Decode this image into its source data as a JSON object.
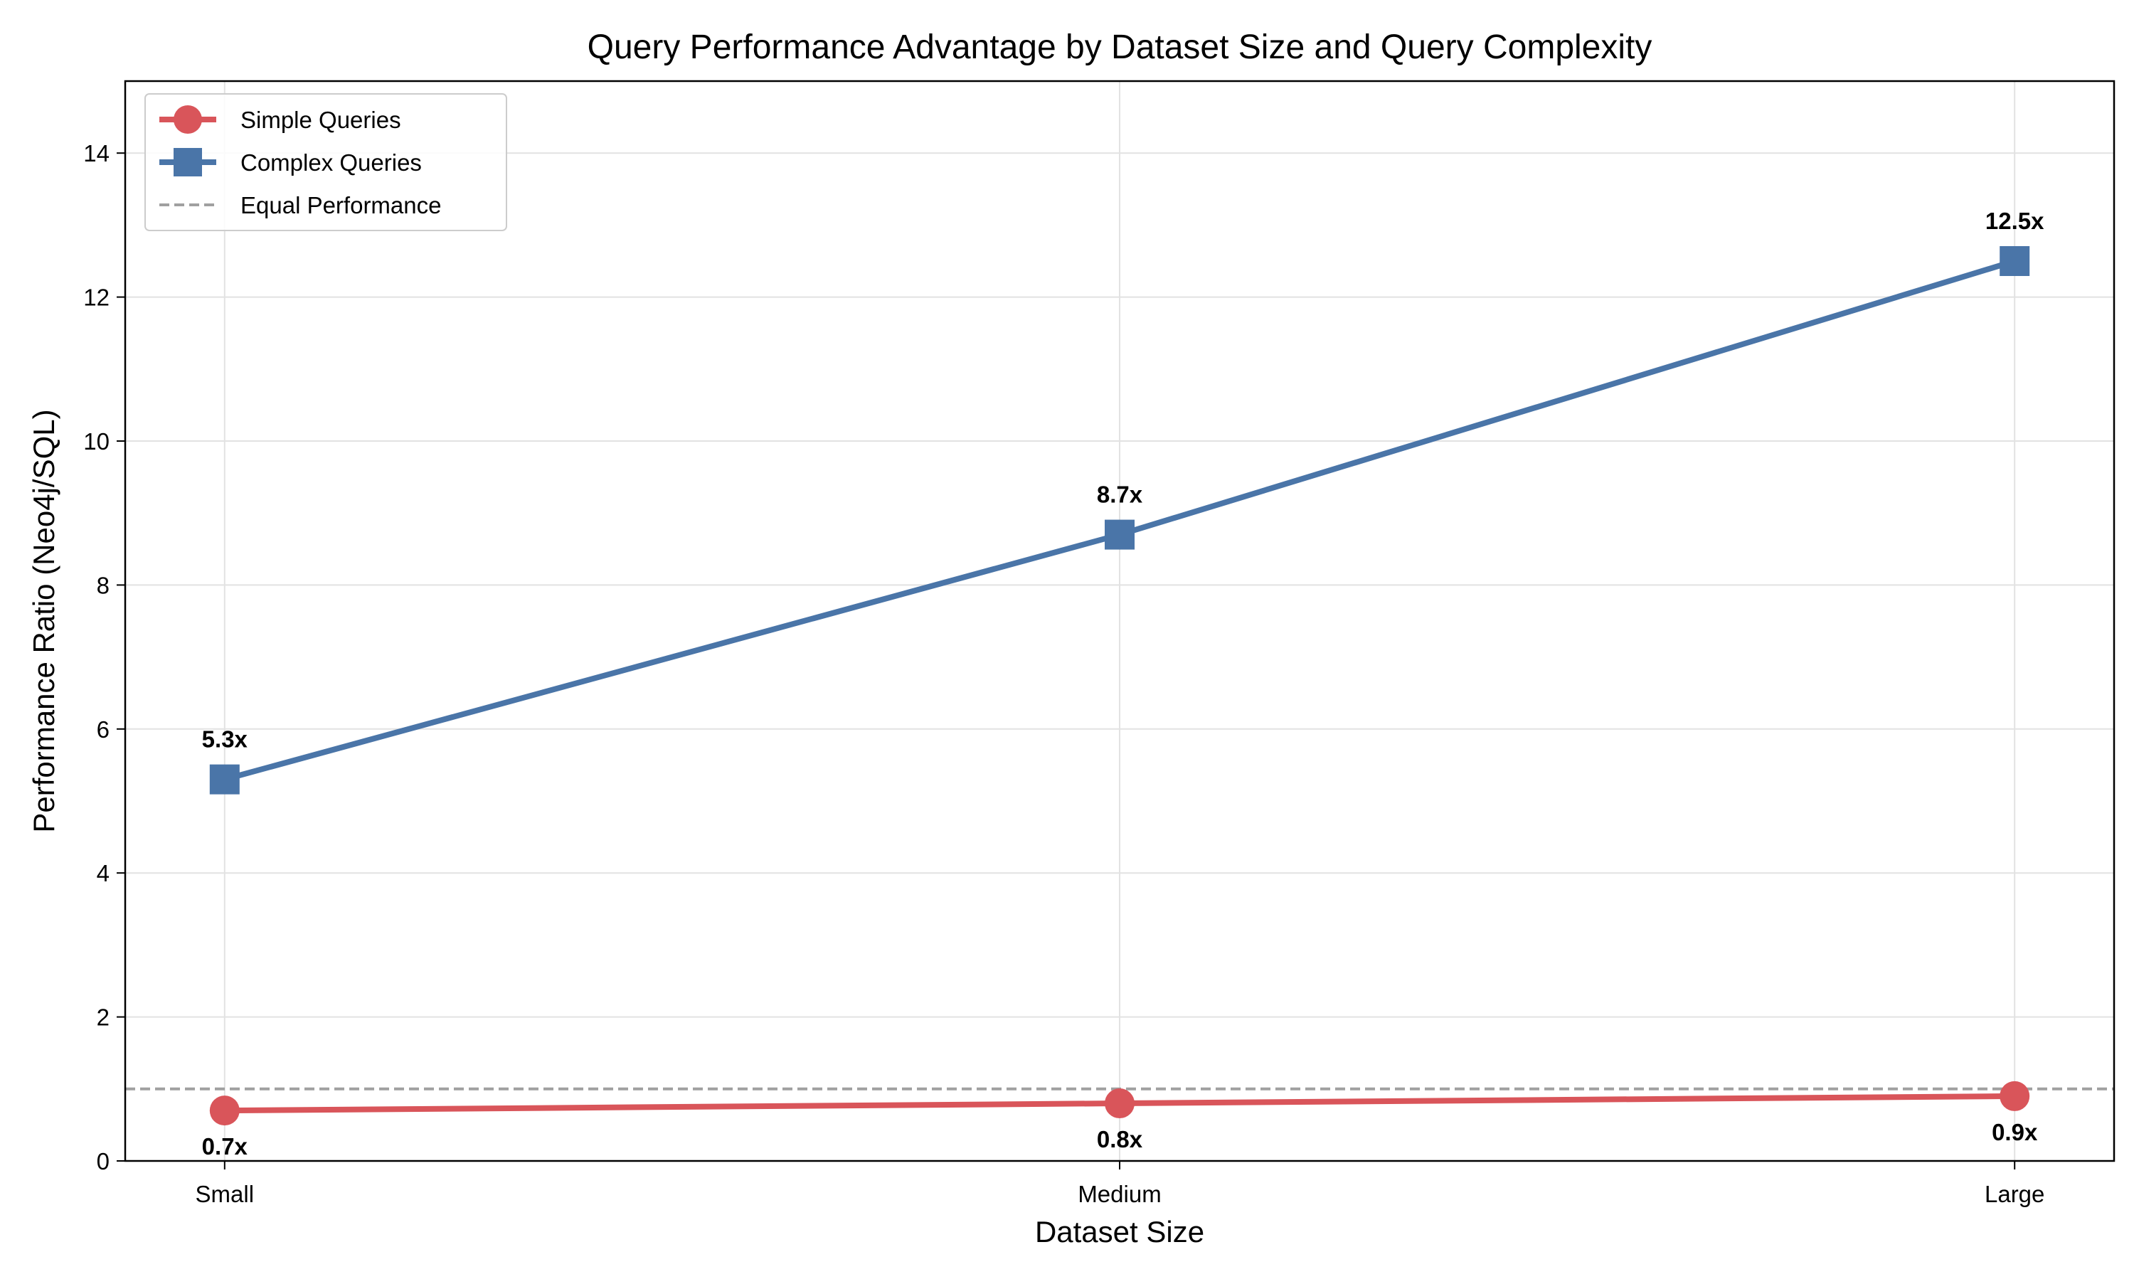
{
  "chart_data": {
    "type": "line",
    "title": "Query Performance Advantage by Dataset Size and Query Complexity",
    "xlabel": "Dataset Size",
    "ylabel": "Performance Ratio (Neo4j/SQL)",
    "categories": [
      "Small",
      "Medium",
      "Large"
    ],
    "ylim": [
      0,
      15
    ],
    "yticks": [
      0,
      2,
      4,
      6,
      8,
      10,
      12,
      14
    ],
    "grid": true,
    "legend_position": "top-left",
    "series": [
      {
        "name": "Simple Queries",
        "values": [
          0.7,
          0.8,
          0.9
        ],
        "labels": [
          "0.7x",
          "0.8x",
          "0.9x"
        ],
        "marker": "circle",
        "label_position": "below",
        "color": "#d9555a"
      },
      {
        "name": "Complex Queries",
        "values": [
          5.3,
          8.7,
          12.5
        ],
        "labels": [
          "5.3x",
          "8.7x",
          "12.5x"
        ],
        "marker": "square",
        "label_position": "above",
        "color": "#4a75a8"
      }
    ],
    "reference_line": {
      "name": "Equal Performance",
      "value": 1,
      "style": "dashed",
      "color": "#a0a0a0"
    }
  }
}
